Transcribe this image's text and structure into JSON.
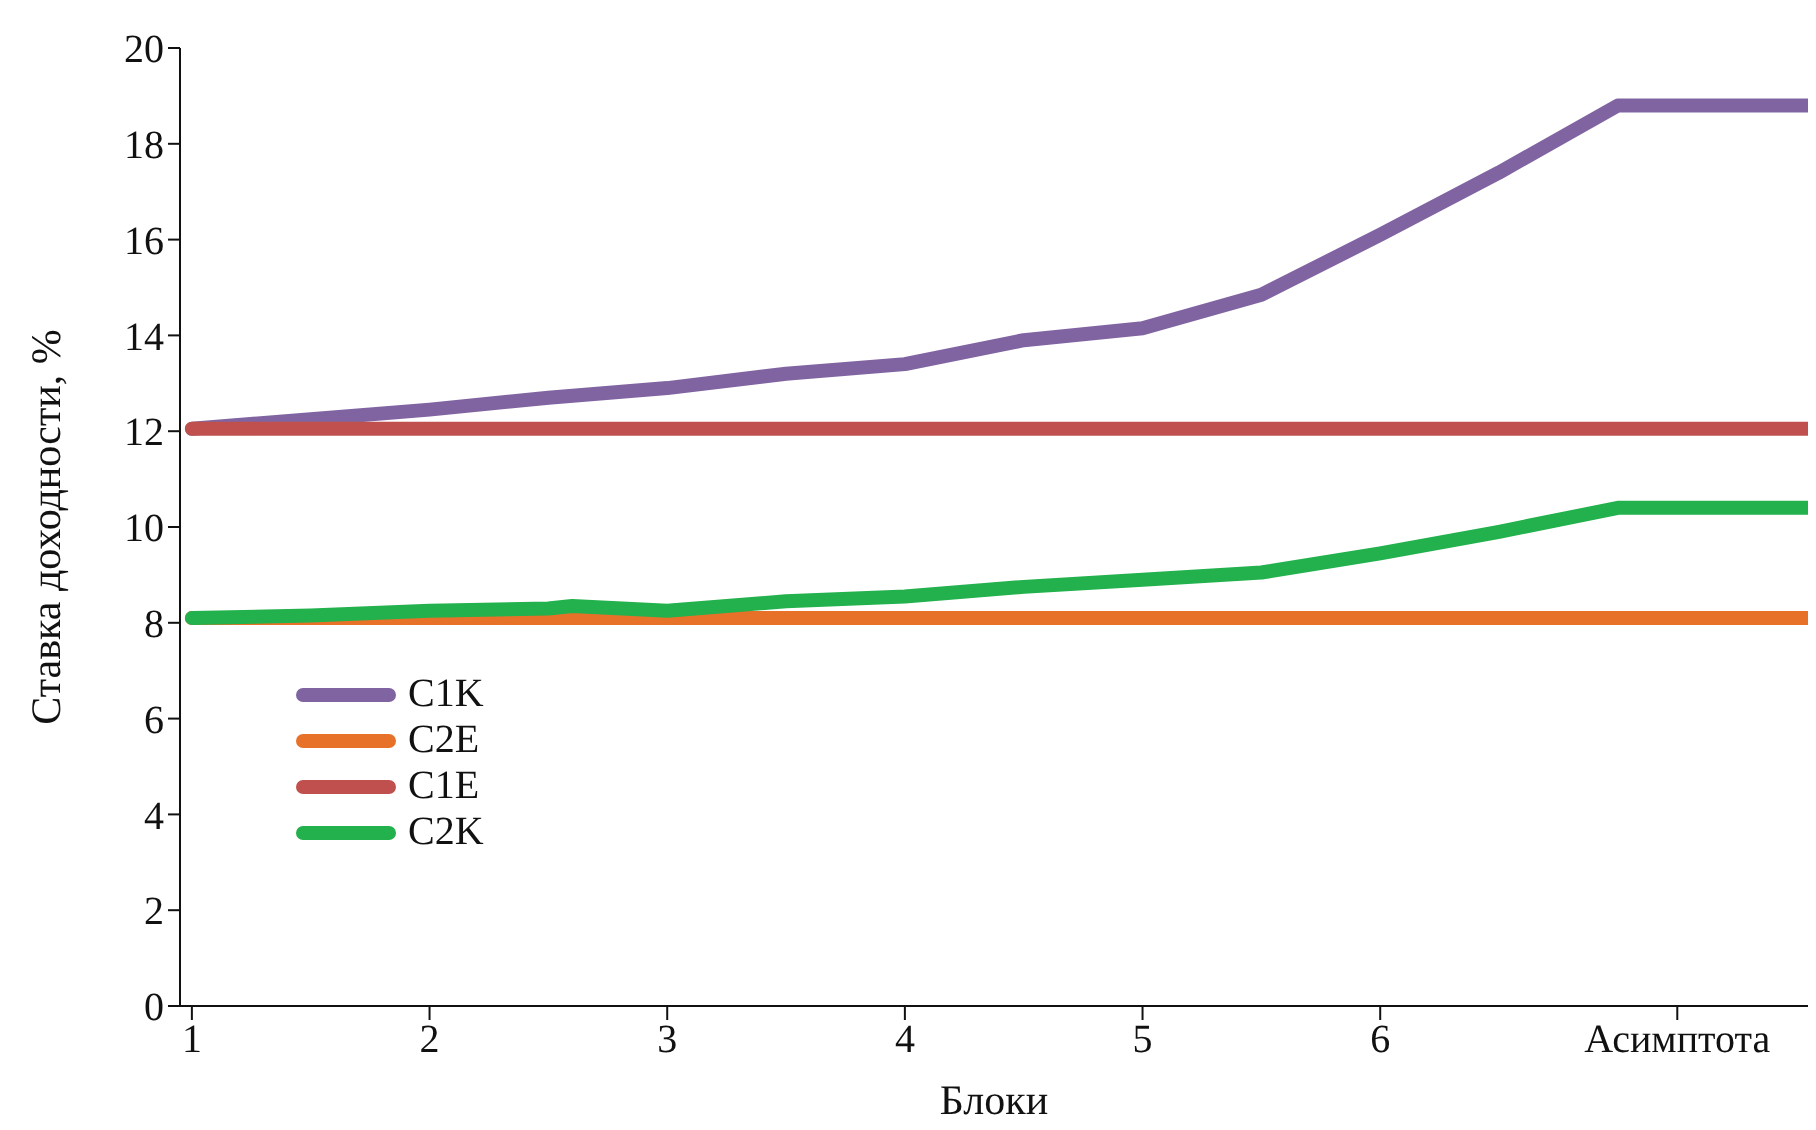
{
  "chart_data": {
    "type": "line",
    "xlabel": "Блоки",
    "ylabel": "Ставка доходности, %",
    "xlim": [
      0.95,
      7.8
    ],
    "xticks": [
      1,
      2,
      3,
      4,
      5,
      6,
      {
        "value": 7.25,
        "label": "Асимптота"
      }
    ],
    "ylim": [
      0,
      20
    ],
    "yticks": [
      0,
      2,
      4,
      6,
      8,
      10,
      12,
      14,
      16,
      18,
      20
    ],
    "grid": false,
    "legend": "left",
    "marker": "none",
    "line_style": "solid",
    "series": [
      {
        "name": "C1K",
        "color": "#8064a2",
        "x": [
          1,
          1.5,
          2,
          2.5,
          3,
          3.5,
          4,
          4.5,
          5,
          5.5,
          6,
          6.5,
          7,
          7.8
        ],
        "values": [
          12.05,
          12.25,
          12.45,
          12.7,
          12.9,
          13.2,
          13.4,
          13.9,
          14.15,
          14.85,
          16.1,
          17.4,
          18.8,
          18.8
        ]
      },
      {
        "name": "C2E",
        "color": "#e8712a",
        "x": [
          1,
          7.8
        ],
        "values": [
          8.1,
          8.1
        ]
      },
      {
        "name": "C1E",
        "color": "#c0504d",
        "x": [
          1,
          7.8
        ],
        "values": [
          12.05,
          12.05
        ]
      },
      {
        "name": "C2K",
        "color": "#22b14c",
        "x": [
          1,
          1.5,
          2,
          2.5,
          2.6,
          3,
          3.5,
          4,
          4.5,
          5,
          5.5,
          6,
          6.5,
          7,
          7.8
        ],
        "values": [
          8.1,
          8.15,
          8.25,
          8.3,
          8.35,
          8.25,
          8.45,
          8.55,
          8.75,
          8.9,
          9.05,
          9.45,
          9.9,
          10.4,
          10.4
        ]
      }
    ]
  }
}
